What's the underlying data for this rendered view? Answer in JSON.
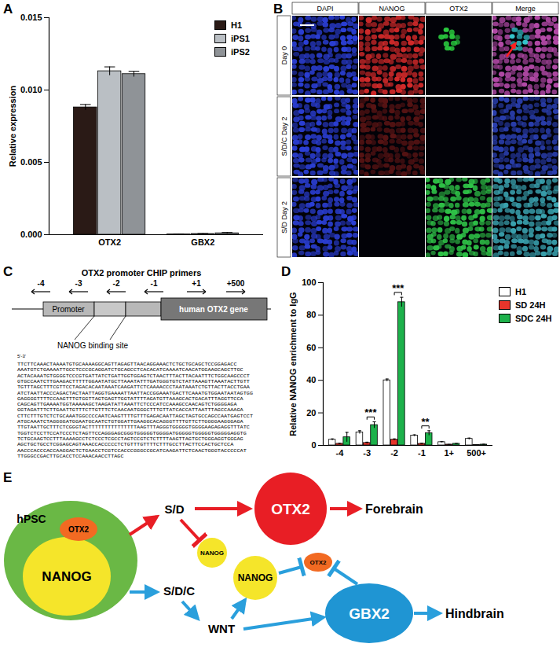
{
  "panel_labels": [
    "A",
    "B",
    "C",
    "D",
    "E"
  ],
  "chart_data": [
    {
      "type": "bar",
      "categories": [
        "OTX2",
        "GBX2"
      ],
      "series": [
        {
          "name": "H1",
          "color": "#2a1a16",
          "values": [
            0.0088,
            2e-05
          ],
          "errors": [
            0.0002,
            2e-05
          ]
        },
        {
          "name": "iPS1",
          "color": "#babfc4",
          "values": [
            0.0113,
            5e-05
          ],
          "errors": [
            0.0003,
            3e-05
          ]
        },
        {
          "name": "iPS2",
          "color": "#8f9397",
          "values": [
            0.0111,
            0.0001
          ],
          "errors": [
            0.0002,
            5e-05
          ]
        }
      ],
      "ylabel": "Relative expression",
      "ylim": [
        0,
        0.015
      ],
      "yticks": [
        {
          "value": 0,
          "label": "0.000"
        },
        {
          "value": 0.005,
          "label": "0.005"
        },
        {
          "value": 0.01,
          "label": "0.010"
        },
        {
          "value": 0.015,
          "label": "0.015"
        }
      ],
      "legend": "top-right"
    },
    {
      "type": "bar",
      "categories": [
        "-4",
        "-3",
        "-2",
        "-1",
        "1+",
        "500+"
      ],
      "series": [
        {
          "name": "H1",
          "color": "#ffffff",
          "values": [
            3.5,
            8,
            40,
            6,
            2,
            4
          ],
          "errors": [
            0.5,
            1,
            0.8,
            0.5,
            0.3,
            0.5
          ]
        },
        {
          "name": "SD 24H",
          "color": "#e8352b",
          "values": [
            1,
            1.5,
            3.5,
            1,
            0.5,
            0.3
          ],
          "errors": [
            0.3,
            0.5,
            0.5,
            0.3,
            0.1,
            0.1
          ]
        },
        {
          "name": "SDC 24H",
          "color": "#1db14b",
          "values": [
            5,
            12.5,
            88,
            7.5,
            1,
            0.5
          ],
          "errors": [
            3,
            2,
            3,
            1.5,
            0.2,
            0.2
          ]
        }
      ],
      "ylabel": "Relative NANOG enrichment to IgG",
      "ylim": [
        0,
        100
      ],
      "yticks": [
        0,
        20,
        40,
        60,
        80,
        100
      ],
      "legend": "right",
      "annotations": [
        {
          "category": "-3",
          "text": "***",
          "between": [
            "SD 24H",
            "SDC 24H"
          ]
        },
        {
          "category": "-2",
          "text": "***",
          "between": [
            "SD 24H",
            "SDC 24H"
          ]
        },
        {
          "category": "-1",
          "text": "**",
          "between": [
            "SD 24H",
            "SDC 24H"
          ]
        }
      ]
    }
  ],
  "panel_B": {
    "columns": [
      "DAPI",
      "NANOG",
      "OTX2",
      "Merge"
    ],
    "rows": [
      "Day 0",
      "S/D/C Day 2",
      "S/D Day 2"
    ]
  },
  "panel_C": {
    "title": "OTX2 promoter CHIP primers",
    "primers": [
      "-4",
      "-3",
      "-2",
      "-1",
      "+1",
      "+500"
    ],
    "promoter": "Promoter",
    "gene": "human OTX2 gene",
    "binding_site": "NANOG binding site",
    "strand": "5'-3'",
    "sequence": [
      "TTCTTCAAACTAAAATGTGCAAAAGGCAGTTAGAGTTAACAGGAAACTCTGCTGCAGCTCCGGAGACC",
      "AAATGTCTGAAAATTGCCTCCCGCAGGATCTGCAGCCTCACACATCAAAATCAACATGGAAGCAGCTTGC",
      "ACTACAAATGTGGGGTCCCGTGATTATCTGATTGGTGGAGTCTAACTTTACTTACAATTTCTGGCAAGCCCT",
      "GTGCCAATCTTGAAGACTTTTTGGAATATGCTTAAATATTTGATGGGTGTCTATTAAAGTTAAATACTTGTT",
      "TGTTTAGCTTTCGTTCCTAGACACAATAAATCAAGATTCTCAAAACCCTAATAAATCTGTTACTTACCTGAA",
      "ATCTAATTACCCAGACTACTAATTAGGTGAAAATTAATTACCGGAAATGACTTCAAATGTGGAATAATAGTGG",
      "GAGGGGTTTTCCAAGTTTGTGGTTAGTGAGTTGGTATTTTAGATGTTAAAGCACTGACATTTAGGTTCCA",
      "CAGCAGTTGAAAATGGTAAAAAGCTAAGATATTAAATTCTCCCATCCAAAGCCAACAGTCTGGGGAGA",
      "GGTAGATTTCTTGAATTGTTTCTTGTTTCTCAACAATGGGCTTTGTTATCACCATTAATTTAGCCAAAGA",
      "CTTCTTTGTCTCTGCAAATGGCCCCAATCAAGTTTTGTTTGAGACAATTAGCTAGTGCCAGCCAATGAGTCCT",
      "ATGCAAATCTAGGGGATGGAATGCAATCTGTGGATTGAAGGCACAGGGTTTTGTTCTTGGGGAAGGGAGA",
      "TTGTAATTGCTTTCTCGGGTACTTTTTTTTTTTTTTTAAGTTTAGGGTGGGGGTGGGGAAGAGAGGTTTATC",
      "TGGTCTCCTTCCATCCCTCTAGTTCCAGGGAGCGGGTGGGGGTGGGGATGGGGGTGGGGGTGGGGGAGGTG",
      "TCTGCAAGTCCTTTAAAAGCCTCTCCCTCGCCTAGTCCGTCTCTTTTAAGTTAGTGCTGGGAGGTGGGAG",
      "AGCTGCTGCCTCGGAGCAGTAAACCACCCCCTCTGTTTGTTTTCTTTGCCTTACTTCCACTGCTCCA",
      "AACCCACCCACCAAGGACTCTGAACCTCGTCCACCCGGGCCGCATCAAGATTCTCAACTGGGTACCCCCAT",
      "TTGGGCCGACTTGCACCTCCAAACAACCTTAGC"
    ]
  },
  "panel_E": {
    "hpsc": "hPSC",
    "hpsc_otx2": "OTX2",
    "hpsc_nanog": "NANOG",
    "sd": "S/D",
    "sd_otx2": "OTX2",
    "sd_nanog": "NANOG",
    "forebrain": "Forebrain",
    "sdc": "S/D/C",
    "wnt": "WNT",
    "sdc_nanog": "NANOG",
    "sdc_otx2": "OTX2",
    "gbx2": "GBX2",
    "hindbrain": "Hindbrain"
  }
}
